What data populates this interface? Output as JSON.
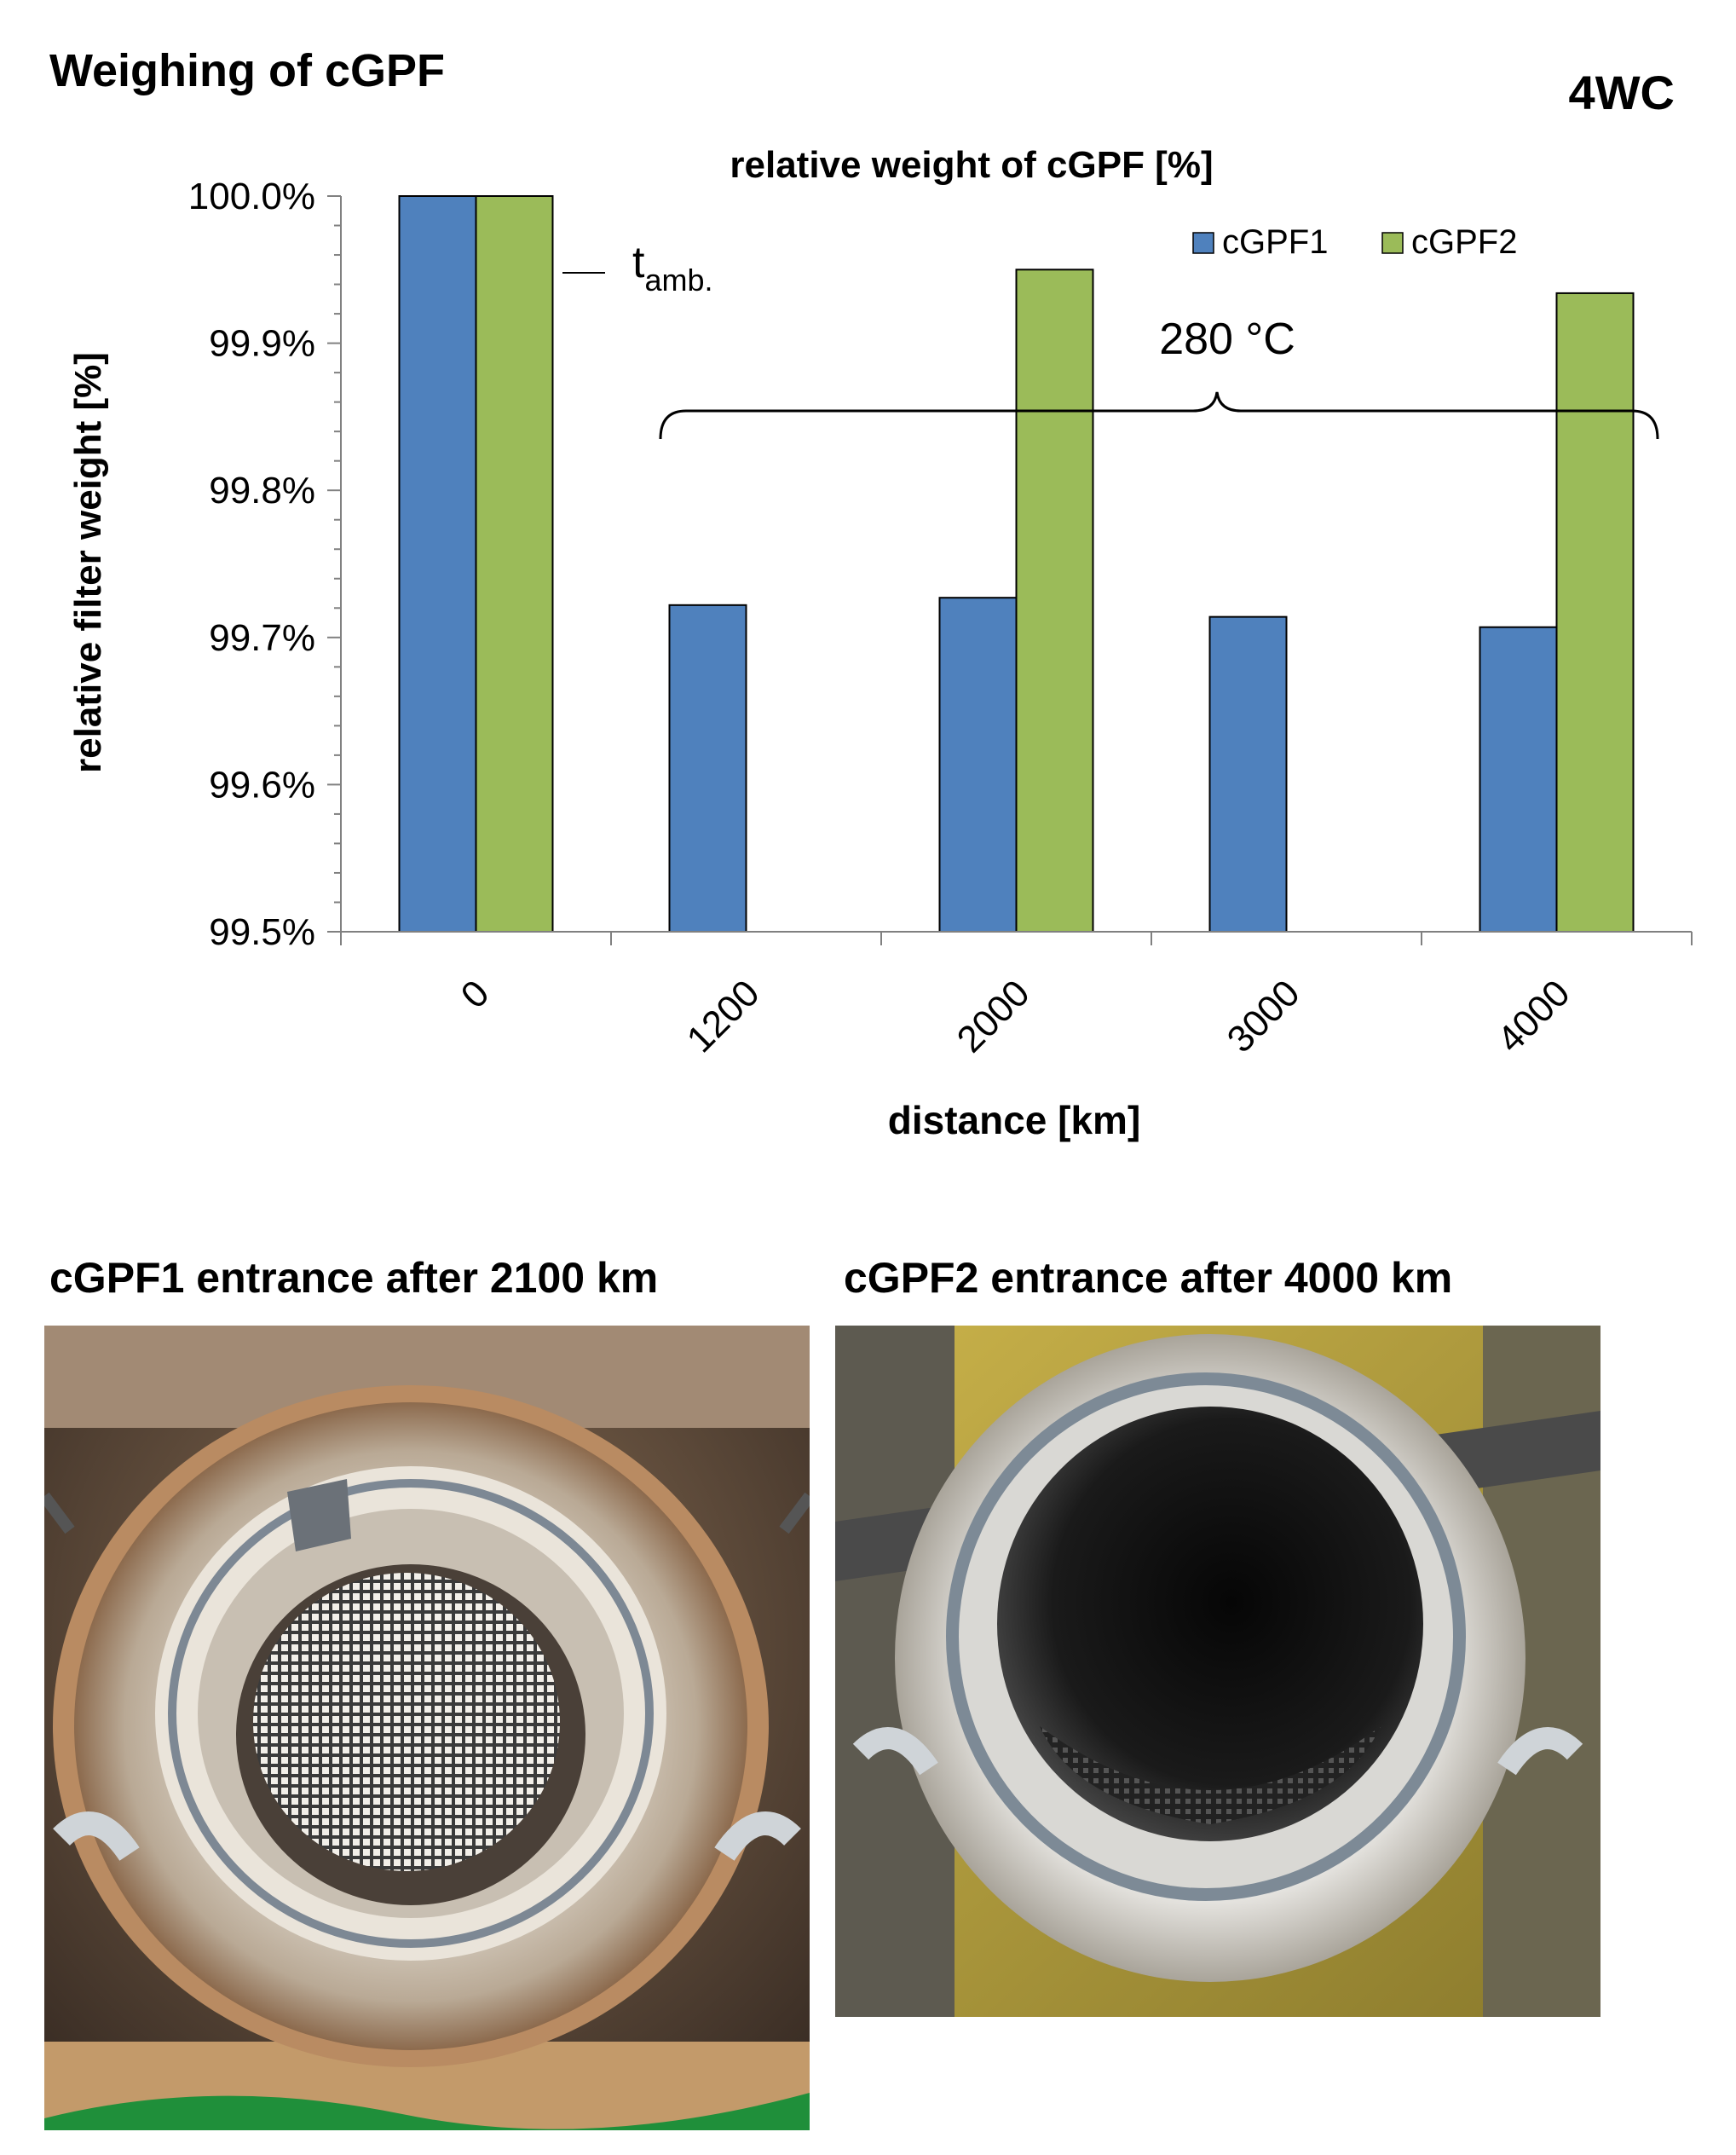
{
  "header": {
    "title": "Weighing of cGPF",
    "tag": "4WC"
  },
  "chart_data": {
    "type": "bar",
    "title": "relative weight of cGPF [%]",
    "xlabel": "distance [km]",
    "ylabel": "relative filter weight [%]",
    "categories": [
      "0",
      "1200",
      "2000",
      "3000",
      "4000"
    ],
    "series": [
      {
        "name": "cGPF1",
        "color": "#4f81bd",
        "values": [
          100.0,
          99.722,
          99.727,
          99.714,
          99.707
        ]
      },
      {
        "name": "cGPF2",
        "color": "#9bbb59",
        "values": [
          100.0,
          null,
          99.95,
          null,
          99.934
        ]
      }
    ],
    "ylim": [
      99.5,
      100.0
    ],
    "yticks": [
      "99.5%",
      "99.6%",
      "99.7%",
      "99.8%",
      "99.9%",
      "100.0%"
    ],
    "legend": "top-right",
    "grid": false,
    "annotations": {
      "ambient_label": "t",
      "ambient_subscript": "amb.",
      "temperature_label": "280 °C"
    }
  },
  "photos": [
    {
      "caption": "cGPF1 entrance after 2100 km"
    },
    {
      "caption": "cGPF2 entrance after 4000 km"
    }
  ]
}
